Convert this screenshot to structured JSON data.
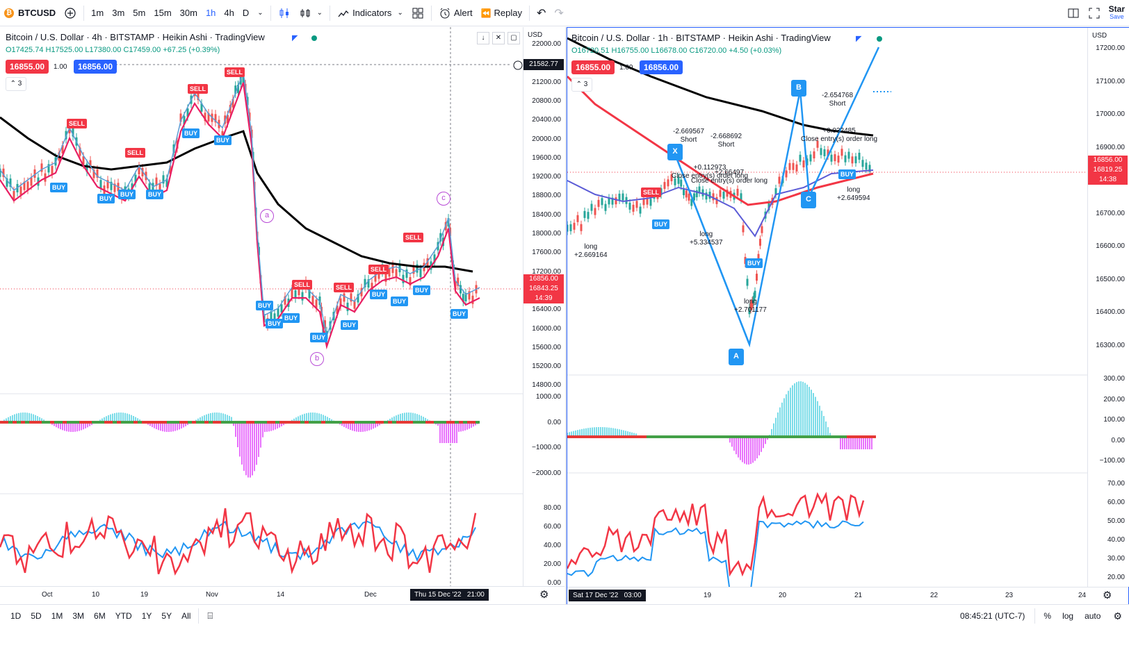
{
  "toolbar": {
    "symbol": "BTCUSD",
    "intervals": [
      "1m",
      "3m",
      "5m",
      "15m",
      "30m",
      "1h",
      "4h",
      "D"
    ],
    "active_interval": "1h",
    "indicators_label": "Indicators",
    "alert_label": "Alert",
    "replay_label": "Replay",
    "star_label": "Star",
    "save_label": "Save"
  },
  "left_chart": {
    "title": "Bitcoin / U.S. Dollar · 4h · BITSTAMP · Heikin Ashi · TradingView",
    "ohlc": {
      "o": "O17425.74",
      "h": "H17525.00",
      "l": "L17380.00",
      "c": "C17459.00",
      "chg": "+67.25 (+0.39%)"
    },
    "sell_price": "16855.00",
    "spread": "1.00",
    "buy_price": "16856.00",
    "indicator_count": "3",
    "currency": "USD",
    "crosshair_price": "21582.77",
    "last_prices": [
      "16856.00",
      "16843.25",
      "14:39"
    ],
    "price_ticks": [
      "22000.00",
      "21600.00",
      "21200.00",
      "20800.00",
      "20400.00",
      "20000.00",
      "19600.00",
      "19200.00",
      "18800.00",
      "18400.00",
      "18000.00",
      "17600.00",
      "17200.00",
      "16800.00",
      "16400.00",
      "16000.00",
      "15600.00",
      "15200.00",
      "14800.00"
    ],
    "osc_ticks": [
      "1000.00",
      "0.00",
      "−1000.00",
      "−2000.00"
    ],
    "rsi_ticks": [
      "80.00",
      "60.00",
      "40.00",
      "20.00",
      "0.00"
    ],
    "time_ticks": [
      "Oct",
      "10",
      "19",
      "Nov",
      "14",
      "Dec"
    ],
    "crosshair_time": "Thu 15 Dec '22   21:00",
    "wave_labels": [
      "a",
      "b",
      "c"
    ],
    "sell_label": "SELL",
    "buy_label": "BUY"
  },
  "right_chart": {
    "title": "Bitcoin / U.S. Dollar · 1h · BITSTAMP · Heikin Ashi · TradingView",
    "ohlc": {
      "o": "O16720.51",
      "h": "H16755.00",
      "l": "L16678.00",
      "c": "C16720.00",
      "chg": "+4.50 (+0.03%)"
    },
    "sell_price": "16855.00",
    "spread": "1.00",
    "buy_price": "16856.00",
    "indicator_count": "3",
    "currency": "USD",
    "last_prices": [
      "16856.00",
      "16819.25",
      "14:38"
    ],
    "price_ticks": [
      "17200.00",
      "17100.00",
      "17000.00",
      "16900.00",
      "16800.00",
      "16700.00",
      "16600.00",
      "16500.00",
      "16400.00",
      "16300.00"
    ],
    "osc_ticks": [
      "300.00",
      "200.00",
      "100.00",
      "0.00",
      "−100.00"
    ],
    "rsi_ticks": [
      "70.00",
      "60.00",
      "50.00",
      "40.00",
      "30.00",
      "20.00"
    ],
    "time_ticks": [
      "19",
      "20",
      "21",
      "22",
      "23",
      "24"
    ],
    "crosshair_time": "Sat 17 Dec '22   03:00",
    "pattern_points": [
      "X",
      "A",
      "B",
      "C"
    ],
    "annotations": [
      {
        "text": "-2.669567\nShort"
      },
      {
        "text": "-2.668692\nShort"
      },
      {
        "text": "-2.654768\nShort"
      },
      {
        "text": "+0.112973\nClose entry(s) order long"
      },
      {
        "text": "+2.66497\nClose entry(s) order long"
      },
      {
        "text": "+0.032485\nClose entry(s) order long"
      },
      {
        "text": "long\n+2.669164"
      },
      {
        "text": "long\n+5.334537"
      },
      {
        "text": "long\n+2.701177"
      },
      {
        "text": "long\n+2.649594"
      }
    ],
    "sell_label": "SELL",
    "buy_label": "BUY"
  },
  "bottom": {
    "ranges": [
      "1D",
      "5D",
      "1M",
      "3M",
      "6M",
      "YTD",
      "1Y",
      "5Y",
      "All"
    ],
    "clock": "08:45:21 (UTC-7)",
    "percent": "%",
    "log": "log",
    "auto": "auto"
  },
  "colors": {
    "red": "#f23645",
    "blue": "#2962ff",
    "green": "#089981",
    "black": "#000000",
    "pink": "#e91e63"
  }
}
